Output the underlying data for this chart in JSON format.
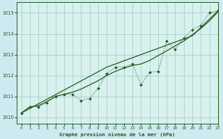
{
  "title": "Graphe pression niveau de la mer (hPa)",
  "bg_color": "#cfe9f0",
  "plot_bg_color": "#d8f0ee",
  "line_color": "#1e5c1e",
  "grid_color": "#a8cfc8",
  "xlim": [
    -0.5,
    23
  ],
  "ylim": [
    1009.7,
    1015.5
  ],
  "yticks": [
    1010,
    1011,
    1012,
    1013,
    1014,
    1015
  ],
  "xticks": [
    0,
    1,
    2,
    3,
    4,
    5,
    6,
    7,
    8,
    9,
    10,
    11,
    12,
    13,
    14,
    15,
    16,
    17,
    18,
    19,
    20,
    21,
    22,
    23
  ],
  "hours": [
    0,
    1,
    2,
    3,
    4,
    5,
    6,
    7,
    8,
    9,
    10,
    11,
    12,
    13,
    14,
    15,
    16,
    17,
    18,
    19,
    20,
    21,
    22,
    23
  ],
  "pressure_measured": [
    1010.2,
    1010.5,
    1010.5,
    1010.7,
    1011.0,
    1011.1,
    1011.1,
    1010.8,
    1010.9,
    1011.4,
    1012.1,
    1012.4,
    1012.4,
    1012.55,
    1011.55,
    1012.15,
    1012.2,
    1013.65,
    1013.25,
    1013.8,
    1014.2,
    1014.4,
    1015.0,
    1015.1
  ],
  "pressure_smooth": [
    1010.2,
    1010.5,
    1010.55,
    1010.75,
    1011.0,
    1011.1,
    1011.2,
    1011.35,
    1011.55,
    1011.75,
    1012.0,
    1012.2,
    1012.35,
    1012.48,
    1012.55,
    1012.72,
    1012.95,
    1013.18,
    1013.42,
    1013.65,
    1013.95,
    1014.25,
    1014.62,
    1015.05
  ],
  "pressure_linear": [
    1010.2,
    1010.42,
    1010.64,
    1010.86,
    1011.08,
    1011.3,
    1011.52,
    1011.74,
    1011.96,
    1012.18,
    1012.4,
    1012.55,
    1012.7,
    1012.85,
    1013.0,
    1013.15,
    1013.3,
    1013.45,
    1013.6,
    1013.75,
    1013.9,
    1014.3,
    1014.7,
    1015.1
  ]
}
